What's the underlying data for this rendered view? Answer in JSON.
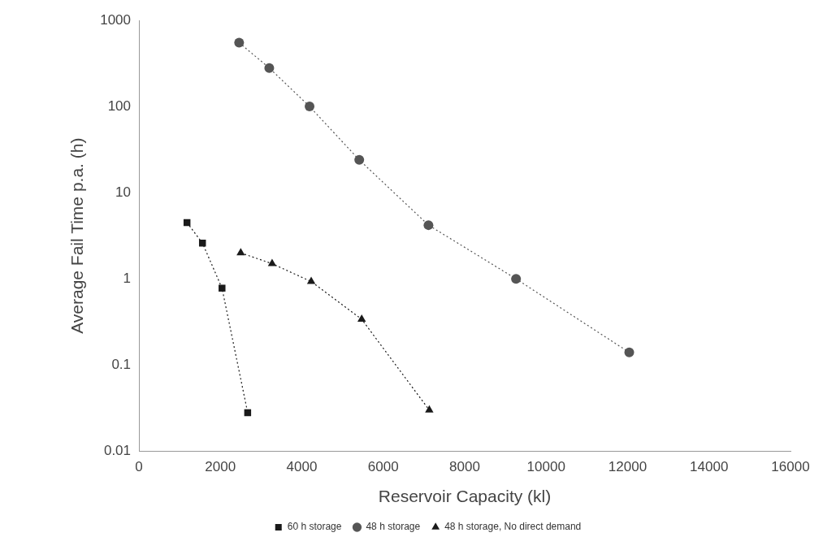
{
  "chart_data": {
    "type": "line",
    "xlabel": "Reservoir Capacity (kl)",
    "ylabel": "Average Fail Time p.a. (h)",
    "xlim": [
      0,
      16000
    ],
    "xticks": [
      0,
      2000,
      4000,
      6000,
      8000,
      10000,
      12000,
      14000,
      16000
    ],
    "ylim": [
      0.01,
      1000
    ],
    "yticks": [
      0.01,
      0.1,
      1,
      10,
      100,
      1000
    ],
    "log": "y",
    "grid": false,
    "legend": "bottom",
    "line_style": "dotted",
    "series": [
      {
        "name": "60 h storage",
        "color": "#1a1a1a",
        "marker": "square",
        "x": [
          1180,
          1560,
          2040,
          2670
        ],
        "values": [
          4.5,
          2.6,
          0.78,
          0.028
        ]
      },
      {
        "name": "48 h storage",
        "color": "#555555",
        "marker": "circle",
        "x": [
          2460,
          3200,
          4190,
          5410,
          7110,
          9260,
          12040
        ],
        "values": [
          550,
          280,
          100,
          24,
          4.2,
          1.0,
          0.14
        ]
      },
      {
        "name": "48 h storage, No direct demand",
        "color": "#1a1a1a",
        "marker": "triangle",
        "x": [
          2500,
          3270,
          4230,
          5470,
          7130
        ],
        "values": [
          2.0,
          1.5,
          0.93,
          0.34,
          0.03
        ]
      }
    ]
  }
}
